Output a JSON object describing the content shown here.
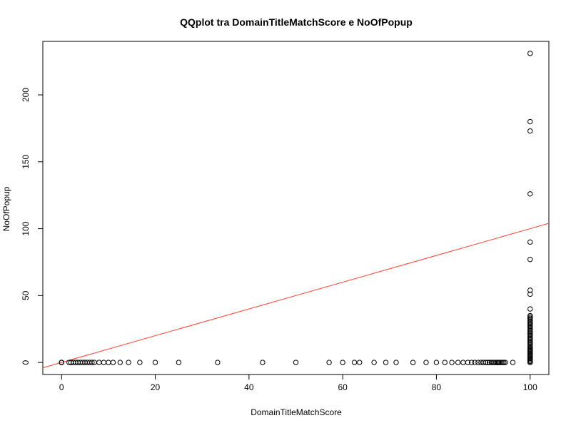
{
  "chart_data": {
    "type": "scatter",
    "title": "QQplot tra DomainTitleMatchScore e NoOfPopup",
    "xlabel": "DomainTitleMatchScore",
    "ylabel": "NoOfPopup",
    "xlim": [
      -4,
      104
    ],
    "ylim": [
      -9,
      240
    ],
    "xticks": [
      0,
      20,
      40,
      60,
      80,
      100
    ],
    "yticks": [
      0,
      50,
      100,
      150,
      200
    ],
    "grid": false,
    "legend": "none",
    "colors": {
      "points": "#000000",
      "line": "#ff3b30",
      "axes": "#000000"
    },
    "reference_line": {
      "intercept": 0,
      "slope": 1
    },
    "points": {
      "x": [
        0,
        0,
        0,
        0,
        1.6,
        2,
        2.5,
        3,
        3.5,
        4,
        4.5,
        5,
        5.5,
        6,
        6.5,
        7,
        8,
        9,
        10,
        11,
        12.5,
        14.3,
        16.7,
        20,
        25,
        33.3,
        42.9,
        50,
        57.1,
        60,
        62.5,
        63.6,
        66.7,
        69.2,
        71.4,
        75,
        77.8,
        80,
        81.8,
        83.3,
        84.6,
        85.7,
        86.7,
        87.5,
        88.2,
        88.9,
        89.5,
        90,
        90.5,
        90.9,
        91.3,
        91.7,
        92,
        92.3,
        92.6,
        92.9,
        93.1,
        93.3,
        93.5,
        93.8,
        94.1,
        94.4,
        94.7,
        96.3,
        100,
        100,
        100,
        100,
        100,
        100,
        100,
        100,
        100,
        100,
        100,
        100,
        100,
        100,
        100,
        100,
        100,
        100,
        100,
        100,
        100,
        100,
        100,
        100,
        100,
        100,
        100,
        100,
        100,
        100,
        100,
        100,
        100,
        100,
        100,
        100,
        100,
        100,
        100,
        100,
        100,
        100,
        100,
        100,
        100,
        100,
        100,
        100,
        100,
        100,
        100,
        100,
        100,
        100,
        100,
        100
      ],
      "y": [
        0,
        0,
        0,
        0,
        0,
        0,
        0,
        0,
        0,
        0,
        0,
        0,
        0,
        0,
        0,
        0,
        0,
        0,
        0,
        0,
        0,
        0,
        0,
        0,
        0,
        0,
        0,
        0,
        0,
        0,
        0,
        0,
        0,
        0,
        0,
        0,
        0,
        0,
        0,
        0,
        0,
        0,
        0,
        0,
        0,
        0,
        0,
        0,
        0,
        0,
        0,
        0,
        0,
        0,
        0,
        0,
        0,
        0,
        0,
        0,
        0,
        0,
        0,
        0,
        0,
        0,
        1,
        1,
        2,
        2,
        3,
        3,
        4,
        4,
        5,
        5,
        6,
        6,
        7,
        7,
        8,
        8,
        9,
        9,
        10,
        10,
        11,
        12,
        13,
        14,
        15,
        16,
        17,
        18,
        19,
        20,
        21,
        22,
        23,
        24,
        25,
        26,
        27,
        28,
        29,
        30,
        31,
        32,
        33,
        34,
        35,
        40,
        51,
        54,
        77,
        90,
        126,
        173,
        180,
        231
      ]
    }
  }
}
